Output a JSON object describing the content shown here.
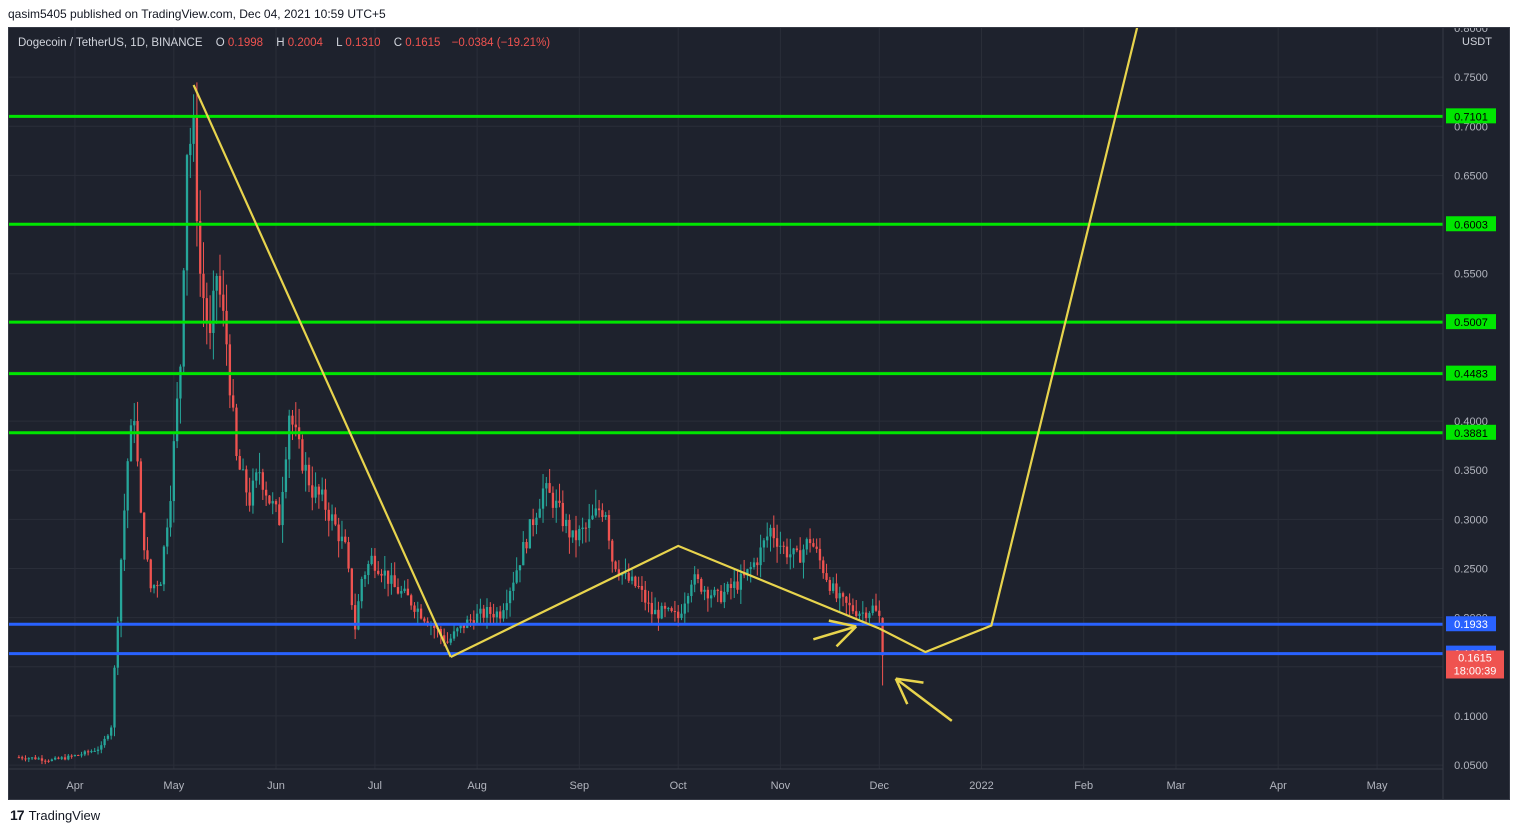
{
  "header": {
    "published_text": "qasim5405 published on TradingView.com, Dec 04, 2021 10:59 UTC+5"
  },
  "footer": {
    "logo_glyph": "17",
    "brand": "TradingView"
  },
  "colors": {
    "background": "#1e222d",
    "grid": "#2a2e39",
    "up": "#26a69a",
    "down": "#ef5350",
    "resistance": "#00e600",
    "support": "#2962ff",
    "drawing": "#e8d44d",
    "axis_text": "#b2b5be"
  },
  "chart_data": {
    "type": "candlestick",
    "symbol": "Dogecoin / TetherUS, 1D, BINANCE",
    "ohlc": {
      "o_label": "O",
      "o": "0.1998",
      "h_label": "H",
      "h": "0.2004",
      "l_label": "L",
      "l": "0.1310",
      "c_label": "C",
      "c": "0.1615",
      "change": "−0.0384 (−19.21%)"
    },
    "currency": "USDT",
    "y_axis": {
      "ticks": [
        "0.0500",
        "0.1000",
        "0.1500",
        "0.2000",
        "0.2500",
        "0.3000",
        "0.3500",
        "0.4000",
        "0.4500",
        "0.5000",
        "0.5500",
        "0.6000",
        "0.6500",
        "0.7000",
        "0.7500",
        "0.8000"
      ],
      "tick_values": [
        0.05,
        0.1,
        0.15,
        0.2,
        0.25,
        0.3,
        0.35,
        0.4,
        0.45,
        0.5,
        0.55,
        0.6,
        0.65,
        0.7,
        0.75,
        0.8
      ],
      "range": [
        0.046,
        0.8
      ]
    },
    "x_axis": {
      "labels": [
        "Apr",
        "May",
        "Jun",
        "Jul",
        "Aug",
        "Sep",
        "Oct",
        "Nov",
        "Dec",
        "2022",
        "Feb",
        "Mar",
        "Apr",
        "May"
      ],
      "label_days": [
        17,
        47,
        78,
        108,
        139,
        170,
        200,
        231,
        261,
        292,
        323,
        351,
        382,
        412
      ],
      "range_days": [
        -3,
        432
      ]
    },
    "horizontal_levels": [
      {
        "value": 0.7101,
        "label": "0.7101",
        "kind": "resistance"
      },
      {
        "value": 0.6003,
        "label": "0.6003",
        "kind": "resistance"
      },
      {
        "value": 0.5007,
        "label": "0.5007",
        "kind": "resistance"
      },
      {
        "value": 0.4483,
        "label": "0.4483",
        "kind": "resistance"
      },
      {
        "value": 0.3881,
        "label": "0.3881",
        "kind": "resistance"
      },
      {
        "value": 0.1933,
        "label": "0.1933",
        "kind": "support"
      },
      {
        "value": 0.1634,
        "label": "0.1634",
        "kind": "support"
      }
    ],
    "last_price": {
      "value": 0.1615,
      "label": "0.1615",
      "countdown": "18:00:39"
    },
    "trend_lines": [
      {
        "points": [
          [
            53,
            0.742
          ],
          [
            131,
            0.16
          ]
        ]
      },
      {
        "points": [
          [
            131,
            0.16
          ],
          [
            200,
            0.273
          ],
          [
            261,
            0.189
          ]
        ]
      },
      {
        "points": [
          [
            261,
            0.189
          ],
          [
            275,
            0.165
          ],
          [
            295,
            0.192
          ],
          [
            345,
            0.88
          ]
        ]
      }
    ],
    "arrows": [
      {
        "from": [
          241,
          0.178
        ],
        "to": [
          254,
          0.191
        ],
        "kind": "chevron"
      },
      {
        "from": [
          283,
          0.095
        ],
        "to": [
          266,
          0.138
        ],
        "kind": "chevron"
      }
    ],
    "price_path": [
      {
        "d": 0,
        "p": 0.058
      },
      {
        "d": 5,
        "p": 0.057
      },
      {
        "d": 10,
        "p": 0.055
      },
      {
        "d": 15,
        "p": 0.058
      },
      {
        "d": 20,
        "p": 0.062
      },
      {
        "d": 25,
        "p": 0.068
      },
      {
        "d": 28,
        "p": 0.09
      },
      {
        "d": 31,
        "p": 0.26
      },
      {
        "d": 33,
        "p": 0.36
      },
      {
        "d": 35,
        "p": 0.41
      },
      {
        "d": 37,
        "p": 0.3
      },
      {
        "d": 40,
        "p": 0.23
      },
      {
        "d": 43,
        "p": 0.24
      },
      {
        "d": 46,
        "p": 0.33
      },
      {
        "d": 49,
        "p": 0.46
      },
      {
        "d": 51,
        "p": 0.68
      },
      {
        "d": 53,
        "p": 0.69
      },
      {
        "d": 55,
        "p": 0.55
      },
      {
        "d": 58,
        "p": 0.48
      },
      {
        "d": 60,
        "p": 0.55
      },
      {
        "d": 63,
        "p": 0.48
      },
      {
        "d": 66,
        "p": 0.36
      },
      {
        "d": 70,
        "p": 0.32
      },
      {
        "d": 73,
        "p": 0.35
      },
      {
        "d": 76,
        "p": 0.32
      },
      {
        "d": 79,
        "p": 0.3
      },
      {
        "d": 82,
        "p": 0.41
      },
      {
        "d": 85,
        "p": 0.37
      },
      {
        "d": 89,
        "p": 0.33
      },
      {
        "d": 92,
        "p": 0.32
      },
      {
        "d": 95,
        "p": 0.3
      },
      {
        "d": 99,
        "p": 0.27
      },
      {
        "d": 102,
        "p": 0.19
      },
      {
        "d": 104,
        "p": 0.24
      },
      {
        "d": 107,
        "p": 0.26
      },
      {
        "d": 110,
        "p": 0.25
      },
      {
        "d": 114,
        "p": 0.23
      },
      {
        "d": 118,
        "p": 0.22
      },
      {
        "d": 122,
        "p": 0.205
      },
      {
        "d": 126,
        "p": 0.19
      },
      {
        "d": 130,
        "p": 0.175
      },
      {
        "d": 134,
        "p": 0.19
      },
      {
        "d": 138,
        "p": 0.2
      },
      {
        "d": 142,
        "p": 0.205
      },
      {
        "d": 146,
        "p": 0.205
      },
      {
        "d": 150,
        "p": 0.24
      },
      {
        "d": 153,
        "p": 0.27
      },
      {
        "d": 156,
        "p": 0.3
      },
      {
        "d": 159,
        "p": 0.33
      },
      {
        "d": 162,
        "p": 0.32
      },
      {
        "d": 165,
        "p": 0.3
      },
      {
        "d": 168,
        "p": 0.28
      },
      {
        "d": 172,
        "p": 0.29
      },
      {
        "d": 176,
        "p": 0.31
      },
      {
        "d": 178,
        "p": 0.31
      },
      {
        "d": 180,
        "p": 0.26
      },
      {
        "d": 184,
        "p": 0.24
      },
      {
        "d": 188,
        "p": 0.23
      },
      {
        "d": 192,
        "p": 0.205
      },
      {
        "d": 196,
        "p": 0.205
      },
      {
        "d": 200,
        "p": 0.2
      },
      {
        "d": 204,
        "p": 0.24
      },
      {
        "d": 208,
        "p": 0.23
      },
      {
        "d": 212,
        "p": 0.22
      },
      {
        "d": 216,
        "p": 0.23
      },
      {
        "d": 220,
        "p": 0.24
      },
      {
        "d": 224,
        "p": 0.26
      },
      {
        "d": 228,
        "p": 0.29
      },
      {
        "d": 232,
        "p": 0.27
      },
      {
        "d": 236,
        "p": 0.26
      },
      {
        "d": 240,
        "p": 0.28
      },
      {
        "d": 244,
        "p": 0.25
      },
      {
        "d": 248,
        "p": 0.22
      },
      {
        "d": 252,
        "p": 0.21
      },
      {
        "d": 256,
        "p": 0.205
      },
      {
        "d": 259,
        "p": 0.21
      },
      {
        "d": 261,
        "p": 0.2
      },
      {
        "d": 262,
        "p": 0.1615
      }
    ]
  }
}
